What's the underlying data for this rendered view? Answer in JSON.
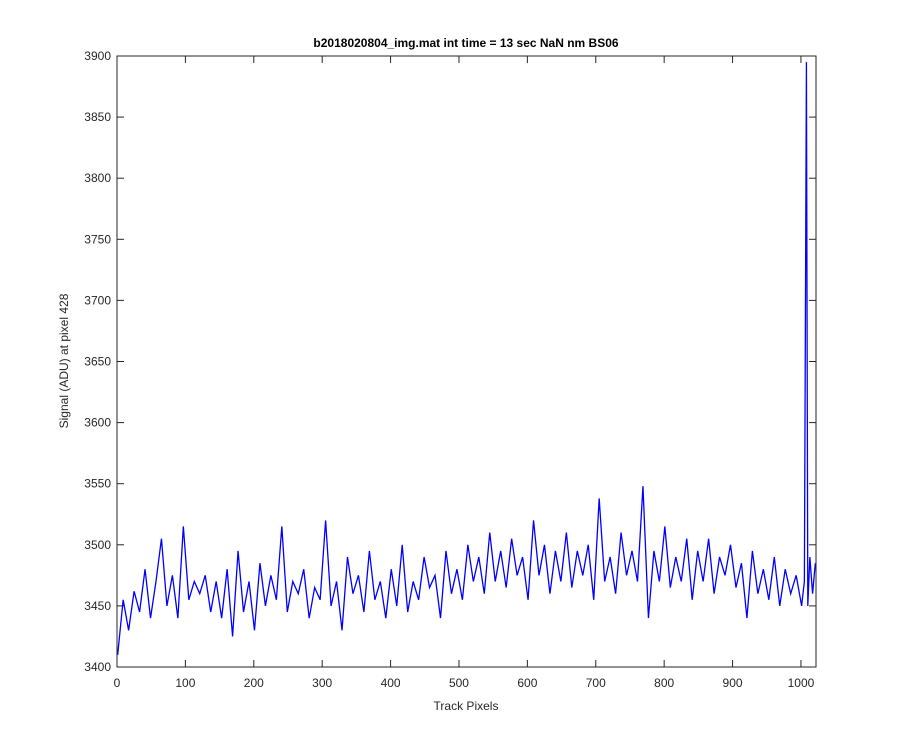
{
  "chart_data": {
    "type": "line",
    "title": "b2018020804_img.mat int time = 13 sec  NaN nm BS06",
    "x_label": "Track Pixels",
    "y_label": "Signal (ADU) at pixel 428",
    "xlim": [
      0,
      1022
    ],
    "ylim": [
      3400,
      3900
    ],
    "xticks": [
      0,
      100,
      200,
      300,
      400,
      500,
      600,
      700,
      800,
      900,
      1000
    ],
    "yticks": [
      3400,
      3450,
      3500,
      3550,
      3600,
      3650,
      3700,
      3750,
      3800,
      3850,
      3900
    ],
    "grid": false,
    "series": [
      {
        "color": "#0000ff",
        "x": [
          1,
          9,
          17,
          25,
          33,
          41,
          49,
          57,
          65,
          73,
          81,
          89,
          97,
          105,
          113,
          121,
          129,
          137,
          145,
          153,
          161,
          169,
          177,
          185,
          193,
          201,
          209,
          217,
          225,
          233,
          241,
          249,
          257,
          265,
          273,
          281,
          289,
          297,
          305,
          313,
          321,
          329,
          337,
          345,
          353,
          361,
          369,
          377,
          385,
          393,
          401,
          409,
          417,
          425,
          433,
          441,
          449,
          457,
          465,
          473,
          481,
          489,
          497,
          505,
          513,
          521,
          529,
          537,
          545,
          553,
          561,
          569,
          577,
          585,
          593,
          601,
          609,
          617,
          625,
          633,
          641,
          649,
          657,
          665,
          673,
          681,
          689,
          697,
          705,
          713,
          721,
          729,
          737,
          745,
          753,
          761,
          769,
          777,
          785,
          793,
          801,
          809,
          817,
          825,
          833,
          841,
          849,
          857,
          865,
          873,
          881,
          889,
          897,
          905,
          913,
          921,
          929,
          937,
          945,
          953,
          961,
          969,
          977,
          985,
          993,
          1001,
          1005,
          1008,
          1010,
          1013,
          1017,
          1021
        ],
        "values": [
          3410,
          3455,
          3430,
          3462,
          3445,
          3480,
          3440,
          3470,
          3505,
          3450,
          3475,
          3440,
          3515,
          3455,
          3470,
          3460,
          3475,
          3445,
          3470,
          3440,
          3480,
          3425,
          3495,
          3445,
          3470,
          3430,
          3485,
          3450,
          3475,
          3455,
          3515,
          3445,
          3470,
          3460,
          3480,
          3440,
          3465,
          3455,
          3520,
          3450,
          3470,
          3430,
          3490,
          3460,
          3475,
          3445,
          3495,
          3455,
          3470,
          3440,
          3480,
          3450,
          3500,
          3445,
          3470,
          3455,
          3490,
          3465,
          3475,
          3440,
          3495,
          3460,
          3480,
          3455,
          3500,
          3470,
          3490,
          3460,
          3510,
          3470,
          3495,
          3465,
          3505,
          3475,
          3490,
          3455,
          3520,
          3475,
          3500,
          3460,
          3495,
          3470,
          3510,
          3465,
          3495,
          3475,
          3500,
          3455,
          3538,
          3470,
          3490,
          3460,
          3510,
          3475,
          3495,
          3470,
          3548,
          3440,
          3495,
          3470,
          3515,
          3465,
          3490,
          3470,
          3505,
          3455,
          3495,
          3470,
          3505,
          3460,
          3490,
          3475,
          3500,
          3465,
          3485,
          3440,
          3495,
          3460,
          3480,
          3455,
          3490,
          3450,
          3480,
          3460,
          3475,
          3450,
          3470,
          3895,
          3450,
          3490,
          3460,
          3485
        ]
      }
    ]
  }
}
